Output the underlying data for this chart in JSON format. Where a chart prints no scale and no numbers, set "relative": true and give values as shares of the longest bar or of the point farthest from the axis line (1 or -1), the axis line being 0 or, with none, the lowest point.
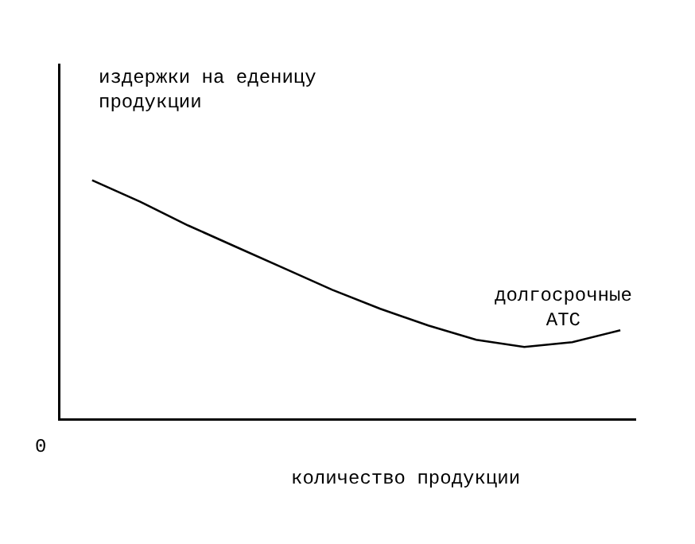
{
  "chart_data": {
    "type": "line",
    "relative": true,
    "xlabel": "количество продукции",
    "ylabel": "издержки на еденицу продукции",
    "annotations": [
      "0"
    ],
    "categories": [
      null,
      null,
      null,
      null,
      null,
      null,
      null,
      null,
      null,
      null,
      null,
      null
    ],
    "series": [
      {
        "name": "долгосрочные ATC",
        "color": "#000000",
        "values": [
          1,
          0.91,
          0.81,
          0.72,
          0.63,
          0.54,
          0.46,
          0.39,
          0.33,
          0.3,
          0.32,
          0.37
        ]
      }
    ],
    "legend": false,
    "marker": "none",
    "line_style": "solid"
  }
}
